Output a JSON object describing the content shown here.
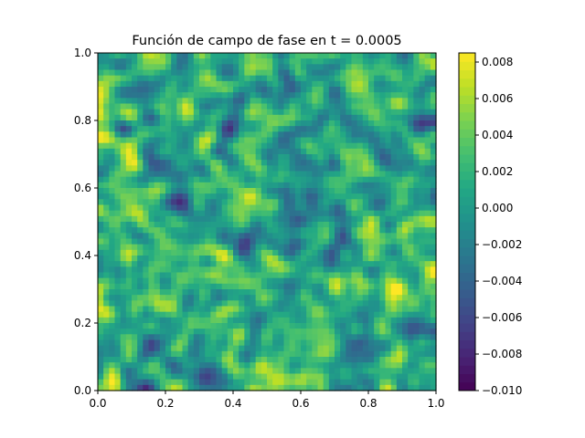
{
  "chart_data": {
    "type": "heatmap",
    "title": "Función de campo de fase en t = 0.0005",
    "xlabel": "",
    "ylabel": "",
    "xlim": [
      0.0,
      1.0
    ],
    "ylim": [
      0.0,
      1.0
    ],
    "x_ticks": [
      "0.0",
      "0.2",
      "0.4",
      "0.6",
      "0.8",
      "1.0"
    ],
    "y_ticks": [
      "0.0",
      "0.2",
      "0.4",
      "0.6",
      "0.8",
      "1.0"
    ],
    "colorbar": {
      "range": [
        -0.01,
        0.0085
      ],
      "ticks": [
        -0.01,
        -0.008,
        -0.006,
        -0.004,
        -0.002,
        0.0,
        0.002,
        0.004,
        0.006,
        0.008
      ],
      "tick_labels": [
        "−0.010",
        "−0.008",
        "−0.006",
        "−0.004",
        "−0.002",
        "0.000",
        "0.002",
        "0.004",
        "0.006",
        "0.008"
      ],
      "colormap": "viridis"
    },
    "field_description": "random noise field, values mostly between -0.004 and 0.006",
    "grid": false
  }
}
